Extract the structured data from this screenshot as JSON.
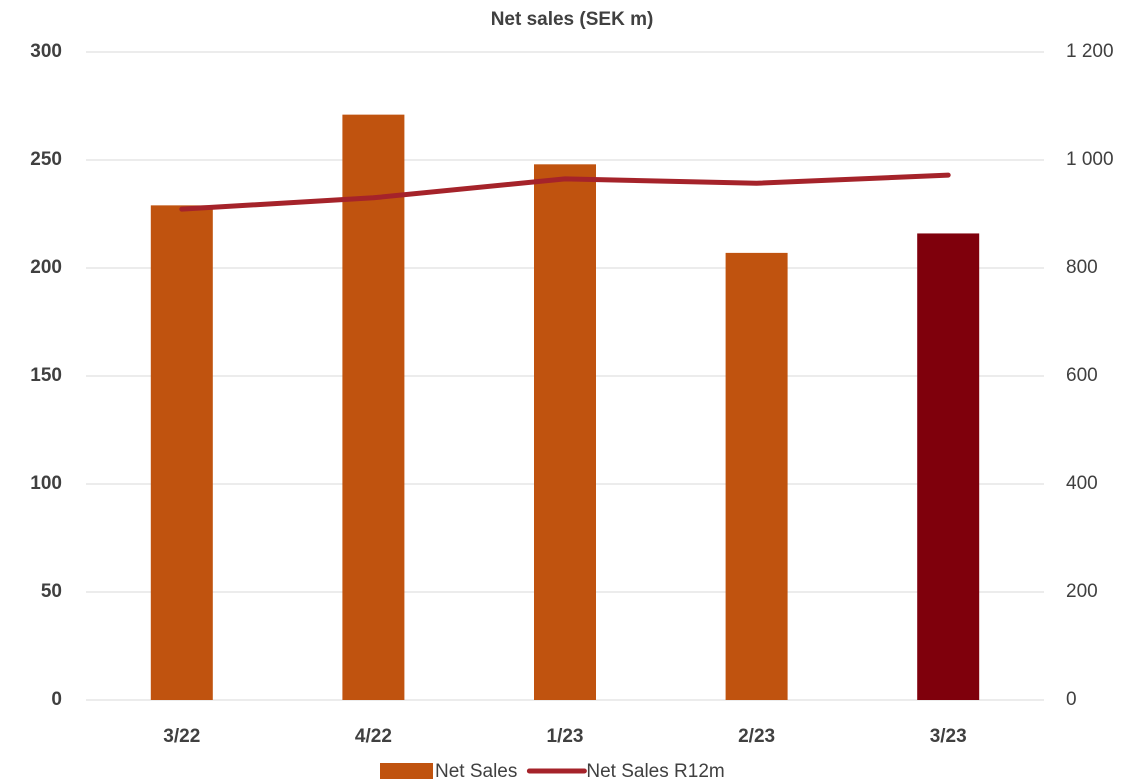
{
  "chart_data": {
    "type": "bar_line",
    "title": "Net sales (SEK m)",
    "categories": [
      "3/22",
      "4/22",
      "1/23",
      "2/23",
      "3/23"
    ],
    "series": [
      {
        "name": "Net Sales",
        "type": "bar",
        "color": "#c0530f",
        "colors": [
          "#c0530f",
          "#c0530f",
          "#c0530f",
          "#c0530f",
          "#7f000c"
        ],
        "values": [
          229,
          271,
          248,
          207,
          216
        ]
      },
      {
        "name": "Net Sales R12m",
        "type": "line",
        "axis": "y2",
        "color": "#a5232a",
        "values": [
          909,
          930,
          965,
          957,
          972
        ]
      }
    ],
    "ylim": [
      0,
      300
    ],
    "yticks": [
      0,
      50,
      100,
      150,
      200,
      250,
      300
    ],
    "y2lim": [
      0,
      1200
    ],
    "y2ticks": [
      0,
      200,
      400,
      600,
      800,
      {
        "value": 1000,
        "label": "1 000"
      },
      {
        "value": 1200,
        "label": "1 200"
      }
    ],
    "grid": true,
    "legend": "bottom"
  }
}
